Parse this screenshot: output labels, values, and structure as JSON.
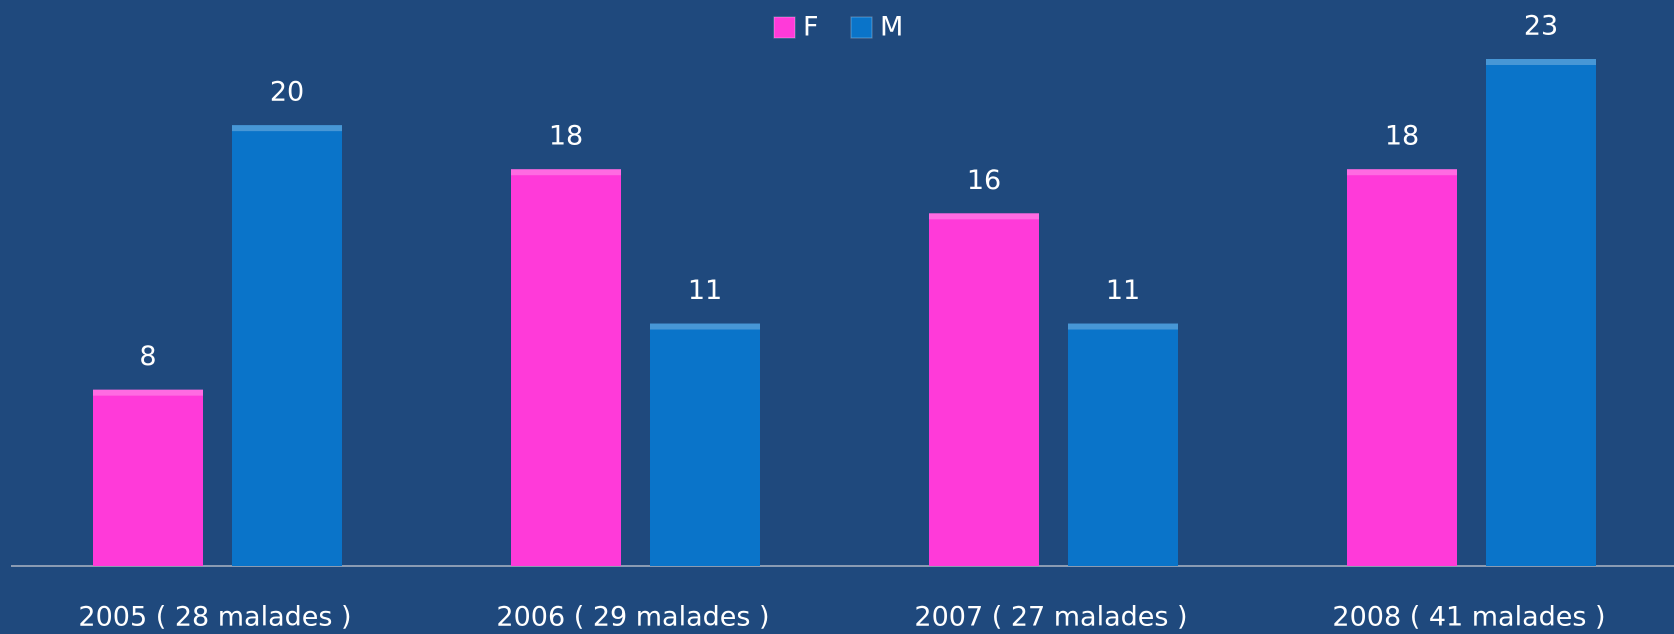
{
  "chart_data": {
    "type": "bar",
    "categories": [
      "2005 ( 28 malades )",
      "2006 ( 29 malades )",
      "2007 ( 27 malades )",
      "2008 ( 41 malades )"
    ],
    "series": [
      {
        "name": "F",
        "color": "#ff3ad9",
        "values": [
          8,
          18,
          16,
          18
        ]
      },
      {
        "name": "M",
        "color": "#0a74c9",
        "values": [
          20,
          11,
          11,
          23
        ]
      }
    ],
    "legend": "top"
  }
}
